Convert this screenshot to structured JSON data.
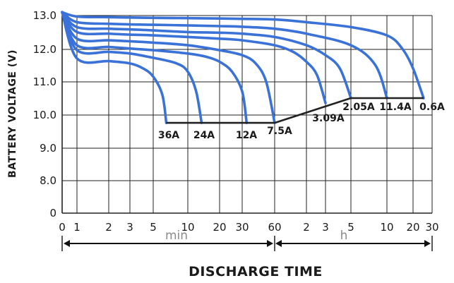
{
  "chart_data": {
    "type": "line",
    "ylabel": "BATTERY VOLTAGE (V)",
    "xlabel": "DISCHARGE TIME",
    "ylim": [
      0,
      13.0
    ],
    "y_ticks": [
      "0",
      "8.0",
      "9.0",
      "10.0",
      "11.0",
      "12.0",
      "13.0"
    ],
    "x_ticks": [
      "0",
      "1",
      "2",
      "3",
      "5",
      "10",
      "20",
      "30",
      "60",
      "2",
      "3",
      "5",
      "10",
      "20",
      "30"
    ],
    "x_units": {
      "minutes": "min",
      "hours": "h"
    },
    "grid": true,
    "colors": {
      "curve": "#3a72d8",
      "cutoff": "#222222",
      "grid": "#222222"
    },
    "series": [
      {
        "name": "36A",
        "x_min": [
          0,
          1,
          2,
          3,
          4,
          5,
          6,
          6.5
        ],
        "y": [
          13.1,
          11.7,
          11.62,
          11.55,
          11.4,
          11.15,
          10.6,
          9.75
        ]
      },
      {
        "name": "24A",
        "x_min": [
          0,
          1,
          2,
          3,
          5,
          8,
          10,
          12,
          13.5
        ],
        "y": [
          13.1,
          11.95,
          11.9,
          11.85,
          11.72,
          11.55,
          11.3,
          10.7,
          9.75
        ]
      },
      {
        "name": "12A",
        "x_min": [
          0,
          1,
          2,
          3,
          5,
          10,
          15,
          20,
          25,
          30,
          33
        ],
        "y": [
          13.1,
          12.1,
          12.05,
          12.0,
          11.95,
          11.85,
          11.75,
          11.6,
          11.3,
          10.7,
          9.75
        ]
      },
      {
        "name": "7.5A",
        "x_min": [
          0,
          1,
          2,
          3,
          5,
          10,
          20,
          30,
          40,
          50,
          60
        ],
        "y": [
          13.1,
          12.3,
          12.25,
          12.22,
          12.18,
          12.1,
          11.95,
          11.8,
          11.55,
          11.0,
          9.75
        ]
      },
      {
        "name": "3.09A",
        "x_min": [
          0,
          1,
          2,
          3,
          5,
          10,
          20,
          30,
          60,
          90,
          120,
          150,
          180
        ],
        "y": [
          13.1,
          12.5,
          12.45,
          12.42,
          12.4,
          12.35,
          12.3,
          12.25,
          12.1,
          11.9,
          11.6,
          11.2,
          10.35
        ]
      },
      {
        "name": "2.05A",
        "x_min": [
          0,
          1,
          2,
          3,
          5,
          10,
          20,
          30,
          60,
          120,
          180,
          240,
          300
        ],
        "y": [
          13.1,
          12.65,
          12.6,
          12.58,
          12.55,
          12.5,
          12.48,
          12.45,
          12.35,
          12.1,
          11.8,
          11.4,
          10.5
        ]
      },
      {
        "name": "11.4A",
        "x_min": [
          0,
          1,
          2,
          3,
          5,
          10,
          20,
          30,
          60,
          120,
          300,
          480,
          600
        ],
        "y": [
          13.1,
          12.8,
          12.75,
          12.73,
          12.72,
          12.7,
          12.68,
          12.66,
          12.6,
          12.45,
          12.1,
          11.5,
          10.5
        ]
      },
      {
        "name": "0.6A",
        "x_min": [
          0,
          1,
          2,
          3,
          5,
          10,
          20,
          30,
          60,
          120,
          300,
          600,
          900,
          1200,
          1500
        ],
        "y": [
          13.1,
          12.97,
          12.95,
          12.94,
          12.93,
          12.92,
          12.91,
          12.9,
          12.88,
          12.8,
          12.65,
          12.4,
          12.0,
          11.4,
          10.5
        ]
      }
    ],
    "cutoff_line": {
      "x_min": [
        6.5,
        60,
        300,
        1500
      ],
      "y": [
        9.75,
        9.75,
        10.5,
        10.5
      ]
    }
  }
}
